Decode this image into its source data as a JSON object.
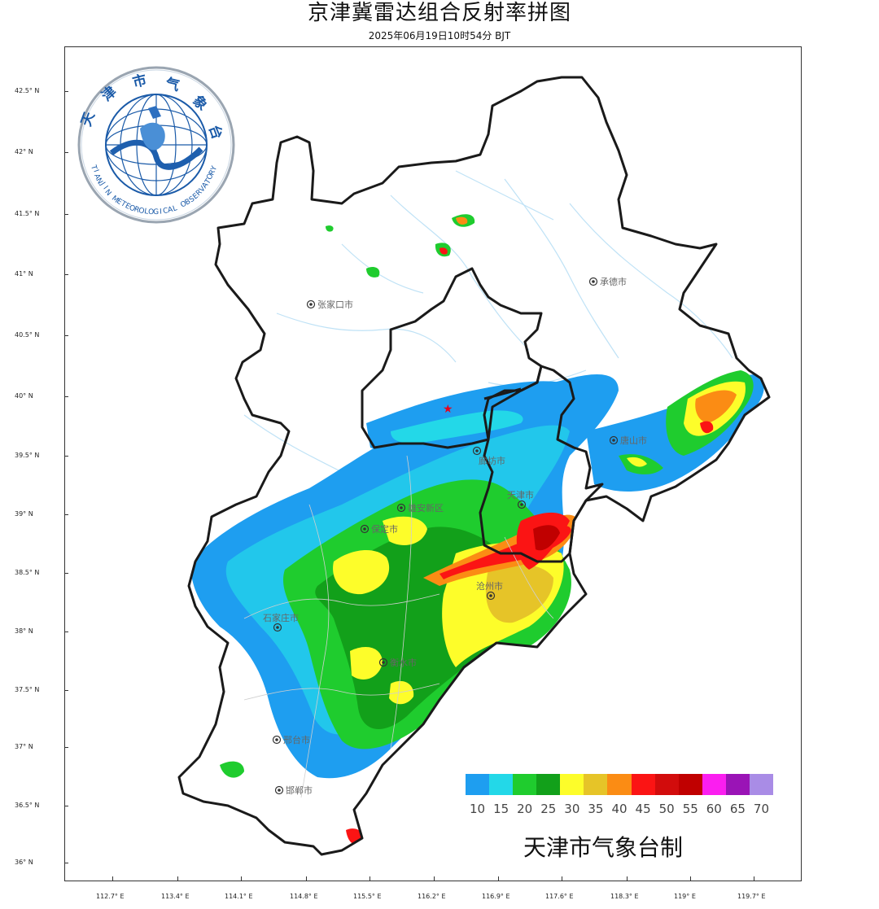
{
  "title": "京津冀雷达组合反射率拼图",
  "subtitle": "2025年06月19日10时54分  BJT",
  "logo": {
    "text_top": "天津市气象台",
    "text_bottom": "TIANJIN METEOROLOGICAL OBSERVATORY"
  },
  "y_axis_labels": [
    "42.5° N",
    "42° N",
    "41.5° N",
    "41° N",
    "40.5° N",
    "40° N",
    "39.5° N",
    "39° N",
    "38.5° N",
    "38° N",
    "37.5° N",
    "37° N",
    "36.5° N",
    "36° N"
  ],
  "x_axis_labels": [
    "112.7° E",
    "113.4° E",
    "114.1° E",
    "114.8° E",
    "115.5° E",
    "116.2° E",
    "116.9° E",
    "117.6° E",
    "118.3° E",
    "119° E",
    "119.7° E"
  ],
  "cities": [
    {
      "name": "张家口市"
    },
    {
      "name": "承德市"
    },
    {
      "name": "唐山市"
    },
    {
      "name": "廊坊市"
    },
    {
      "name": "天津市"
    },
    {
      "name": "雄安新区"
    },
    {
      "name": "保定市"
    },
    {
      "name": "沧州市"
    },
    {
      "name": "石家庄市"
    },
    {
      "name": "衡水市"
    },
    {
      "name": "邢台市"
    },
    {
      "name": "邯郸市"
    }
  ],
  "legend": {
    "values": [
      "10",
      "15",
      "20",
      "25",
      "30",
      "35",
      "40",
      "45",
      "50",
      "55",
      "60",
      "65",
      "70"
    ],
    "colors": [
      "#1e9ef0",
      "#23d8e8",
      "#1fcc2e",
      "#12a01a",
      "#fdfd2a",
      "#e6c428",
      "#fb8c14",
      "#fb1414",
      "#d20c0c",
      "#c00000",
      "#fb1ef0",
      "#9a14b6",
      "#a98ce6"
    ]
  },
  "credit": "天津市气象台制"
}
